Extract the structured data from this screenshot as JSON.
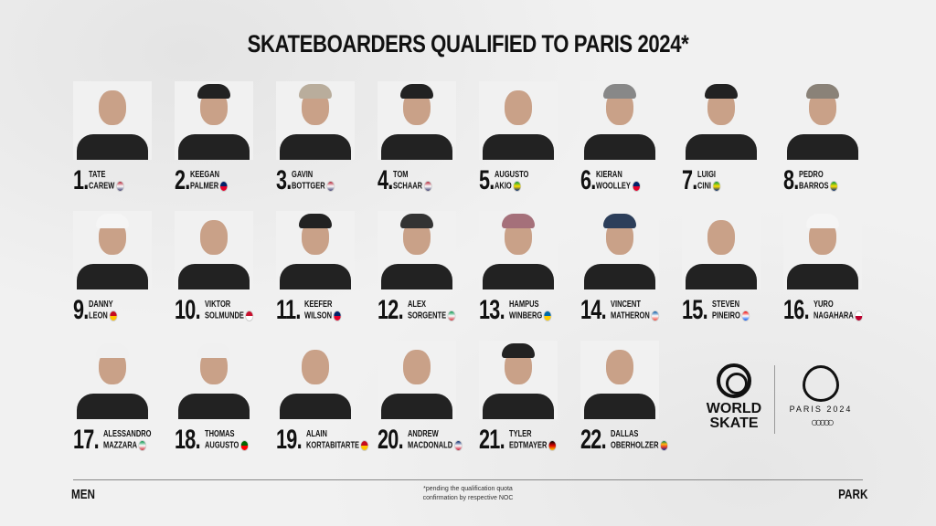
{
  "title": "SKATEBOARDERS QUALIFIED TO PARIS 2024*",
  "athletes": [
    {
      "rank": "1.",
      "first": "TATE",
      "last": "CAREW",
      "flag": "usa",
      "colors": [
        "#b22234",
        "#fff",
        "#3c3b6e"
      ],
      "cap": ""
    },
    {
      "rank": "2.",
      "first": "KEEGAN",
      "last": "PALMER",
      "flag": "australia",
      "colors": [
        "#012169",
        "#e4002b"
      ],
      "cap": "#222"
    },
    {
      "rank": "3.",
      "first": "GAVIN",
      "last": "BOTTGER",
      "flag": "usa",
      "colors": [
        "#b22234",
        "#fff",
        "#3c3b6e"
      ],
      "cap": "#b9ad9c"
    },
    {
      "rank": "4.",
      "first": "TOM",
      "last": "SCHAAR",
      "flag": "usa",
      "colors": [
        "#b22234",
        "#fff",
        "#3c3b6e"
      ],
      "cap": "#222"
    },
    {
      "rank": "5.",
      "first": "AUGUSTO",
      "last": "AKIO",
      "flag": "brazil",
      "colors": [
        "#009c3b",
        "#ffdf00",
        "#002776"
      ],
      "cap": ""
    },
    {
      "rank": "6.",
      "first": "KIERAN",
      "last": "WOOLLEY",
      "flag": "australia",
      "colors": [
        "#012169",
        "#e4002b"
      ],
      "cap": "#888"
    },
    {
      "rank": "7.",
      "first": "LUIGI",
      "last": "CINI",
      "flag": "brazil",
      "colors": [
        "#009c3b",
        "#ffdf00",
        "#002776"
      ],
      "cap": "#222"
    },
    {
      "rank": "8.",
      "first": "PEDRO",
      "last": "BARROS",
      "flag": "brazil",
      "colors": [
        "#009c3b",
        "#ffdf00",
        "#002776"
      ],
      "cap": "#8a8278"
    },
    {
      "rank": "9.",
      "first": "DANNY",
      "last": "LEON",
      "flag": "spain",
      "colors": [
        "#c60b1e",
        "#ffc400"
      ],
      "cap": "#f5f5f5"
    },
    {
      "rank": "10.",
      "first": "VIKTOR",
      "last": "SOLMUNDE",
      "flag": "denmark",
      "colors": [
        "#c8102e",
        "#fff"
      ],
      "cap": ""
    },
    {
      "rank": "11.",
      "first": "KEEFER",
      "last": "WILSON",
      "flag": "australia",
      "colors": [
        "#012169",
        "#e4002b"
      ],
      "cap": "#222"
    },
    {
      "rank": "12.",
      "first": "ALEX",
      "last": "SORGENTE",
      "flag": "italy",
      "colors": [
        "#009246",
        "#fff",
        "#ce2b37"
      ],
      "cap": "#333"
    },
    {
      "rank": "13.",
      "first": "HAMPUS",
      "last": "WINBERG",
      "flag": "sweden",
      "colors": [
        "#006aa7",
        "#fecc00"
      ],
      "cap": "#a5707a"
    },
    {
      "rank": "14.",
      "first": "VINCENT",
      "last": "MATHERON",
      "flag": "france",
      "colors": [
        "#0055a4",
        "#fff",
        "#ef4135"
      ],
      "cap": "#2c3e5a"
    },
    {
      "rank": "15.",
      "first": "STEVEN",
      "last": "PINEIRO",
      "flag": "puerto-rico",
      "colors": [
        "#ed0000",
        "#fff",
        "#0050f0"
      ],
      "cap": ""
    },
    {
      "rank": "16.",
      "first": "YURO",
      "last": "NAGAHARA",
      "flag": "japan",
      "colors": [
        "#fff",
        "#bc002d"
      ],
      "cap": "#f5f5f5"
    },
    {
      "rank": "17.",
      "first": "ALESSANDRO",
      "last": "MAZZARA",
      "flag": "italy",
      "colors": [
        "#009246",
        "#fff",
        "#ce2b37"
      ],
      "cap": "#f0f0f0"
    },
    {
      "rank": "18.",
      "first": "THOMAS",
      "last": "AUGUSTO",
      "flag": "portugal",
      "colors": [
        "#006600",
        "#ff0000"
      ],
      "cap": "#f0f0f0"
    },
    {
      "rank": "19.",
      "first": "ALAIN",
      "last": "KORTABITARTE",
      "flag": "spain",
      "colors": [
        "#c60b1e",
        "#ffc400"
      ],
      "cap": ""
    },
    {
      "rank": "20.",
      "first": "ANDREW",
      "last": "MACDONALD",
      "flag": "great-britain",
      "colors": [
        "#012169",
        "#fff",
        "#c8102e"
      ],
      "cap": ""
    },
    {
      "rank": "21.",
      "first": "TYLER",
      "last": "EDTMAYER",
      "flag": "germany",
      "colors": [
        "#000",
        "#dd0000",
        "#ffce00"
      ],
      "cap": "#222"
    },
    {
      "rank": "22.",
      "first": "DALLAS",
      "last": "OBERHOLZER",
      "flag": "south-africa",
      "colors": [
        "#007a4d",
        "#ffb612",
        "#de3831",
        "#002395"
      ],
      "cap": ""
    }
  ],
  "footer": {
    "left": "MEN",
    "right": "PARK",
    "note_line1": "*pending the qualification quota",
    "note_line2": "confirmation by respective NOC"
  },
  "logos": {
    "world_skate_line1": "WORLD",
    "world_skate_line2": "SKATE",
    "paris": "PARIS 2024",
    "olympic_rings": "olympic-rings-icon"
  }
}
